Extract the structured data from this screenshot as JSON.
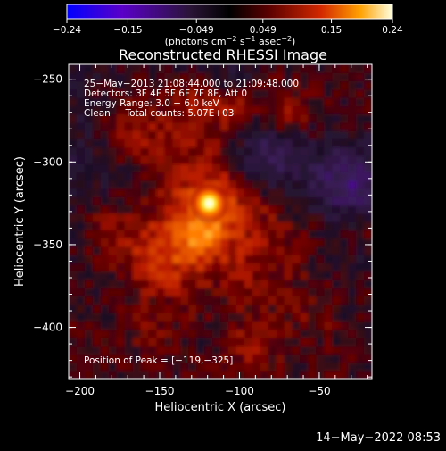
{
  "chart_data": {
    "type": "heatmap",
    "title": "Reconstructed RHESSI Image",
    "xlabel": "Heliocentric X (arcsec)",
    "ylabel": "Heliocentric Y (arcsec)",
    "xlim": [
      -207,
      -17
    ],
    "ylim": [
      -431,
      -241
    ],
    "x_ticks": [
      {
        "v": -200,
        "label": "−200"
      },
      {
        "v": -150,
        "label": "−150"
      },
      {
        "v": -100,
        "label": "−100"
      },
      {
        "v": -50,
        "label": "−50"
      }
    ],
    "y_ticks": [
      {
        "v": -250,
        "label": "−250"
      },
      {
        "v": -300,
        "label": "−300"
      },
      {
        "v": -350,
        "label": "−350"
      },
      {
        "v": -400,
        "label": "−400"
      }
    ],
    "colorbar": {
      "range": [
        -0.24,
        0.24
      ],
      "tick_values": [
        -0.24,
        -0.15,
        -0.049,
        0.049,
        0.15,
        0.24
      ],
      "tick_labels": [
        "−0.24",
        "−0.15",
        "−0.049",
        "0.049",
        "0.15",
        "0.24"
      ],
      "unit_prefix": "(photons cm",
      "unit_sup1": "−2",
      "unit_mid1": " s",
      "unit_sup2": "−1",
      "unit_mid2": " asec",
      "unit_sup3": "−2",
      "unit_suffix": ")"
    },
    "annotations": [
      "25−May−2013 21:08:44.000 to 21:09:48.000",
      "Detectors: 3F 4F 5F 6F 7F 8F, Att 0",
      "Energy Range: 3.0 − 6.0 keV",
      "Clean     Total counts: 5.07E+03"
    ],
    "peak_label": "Position of Peak = [−119,−325]",
    "peak": {
      "x": -119,
      "y": -325,
      "value": 0.24
    },
    "colors": [
      "#0000ff",
      "#5a00c8",
      "#3c1e50",
      "#000000",
      "#640000",
      "#c81e00",
      "#ff8c00",
      "#ffff64",
      "#ffffff"
    ]
  },
  "footer": {
    "date": "14−May−2022 08:53"
  }
}
